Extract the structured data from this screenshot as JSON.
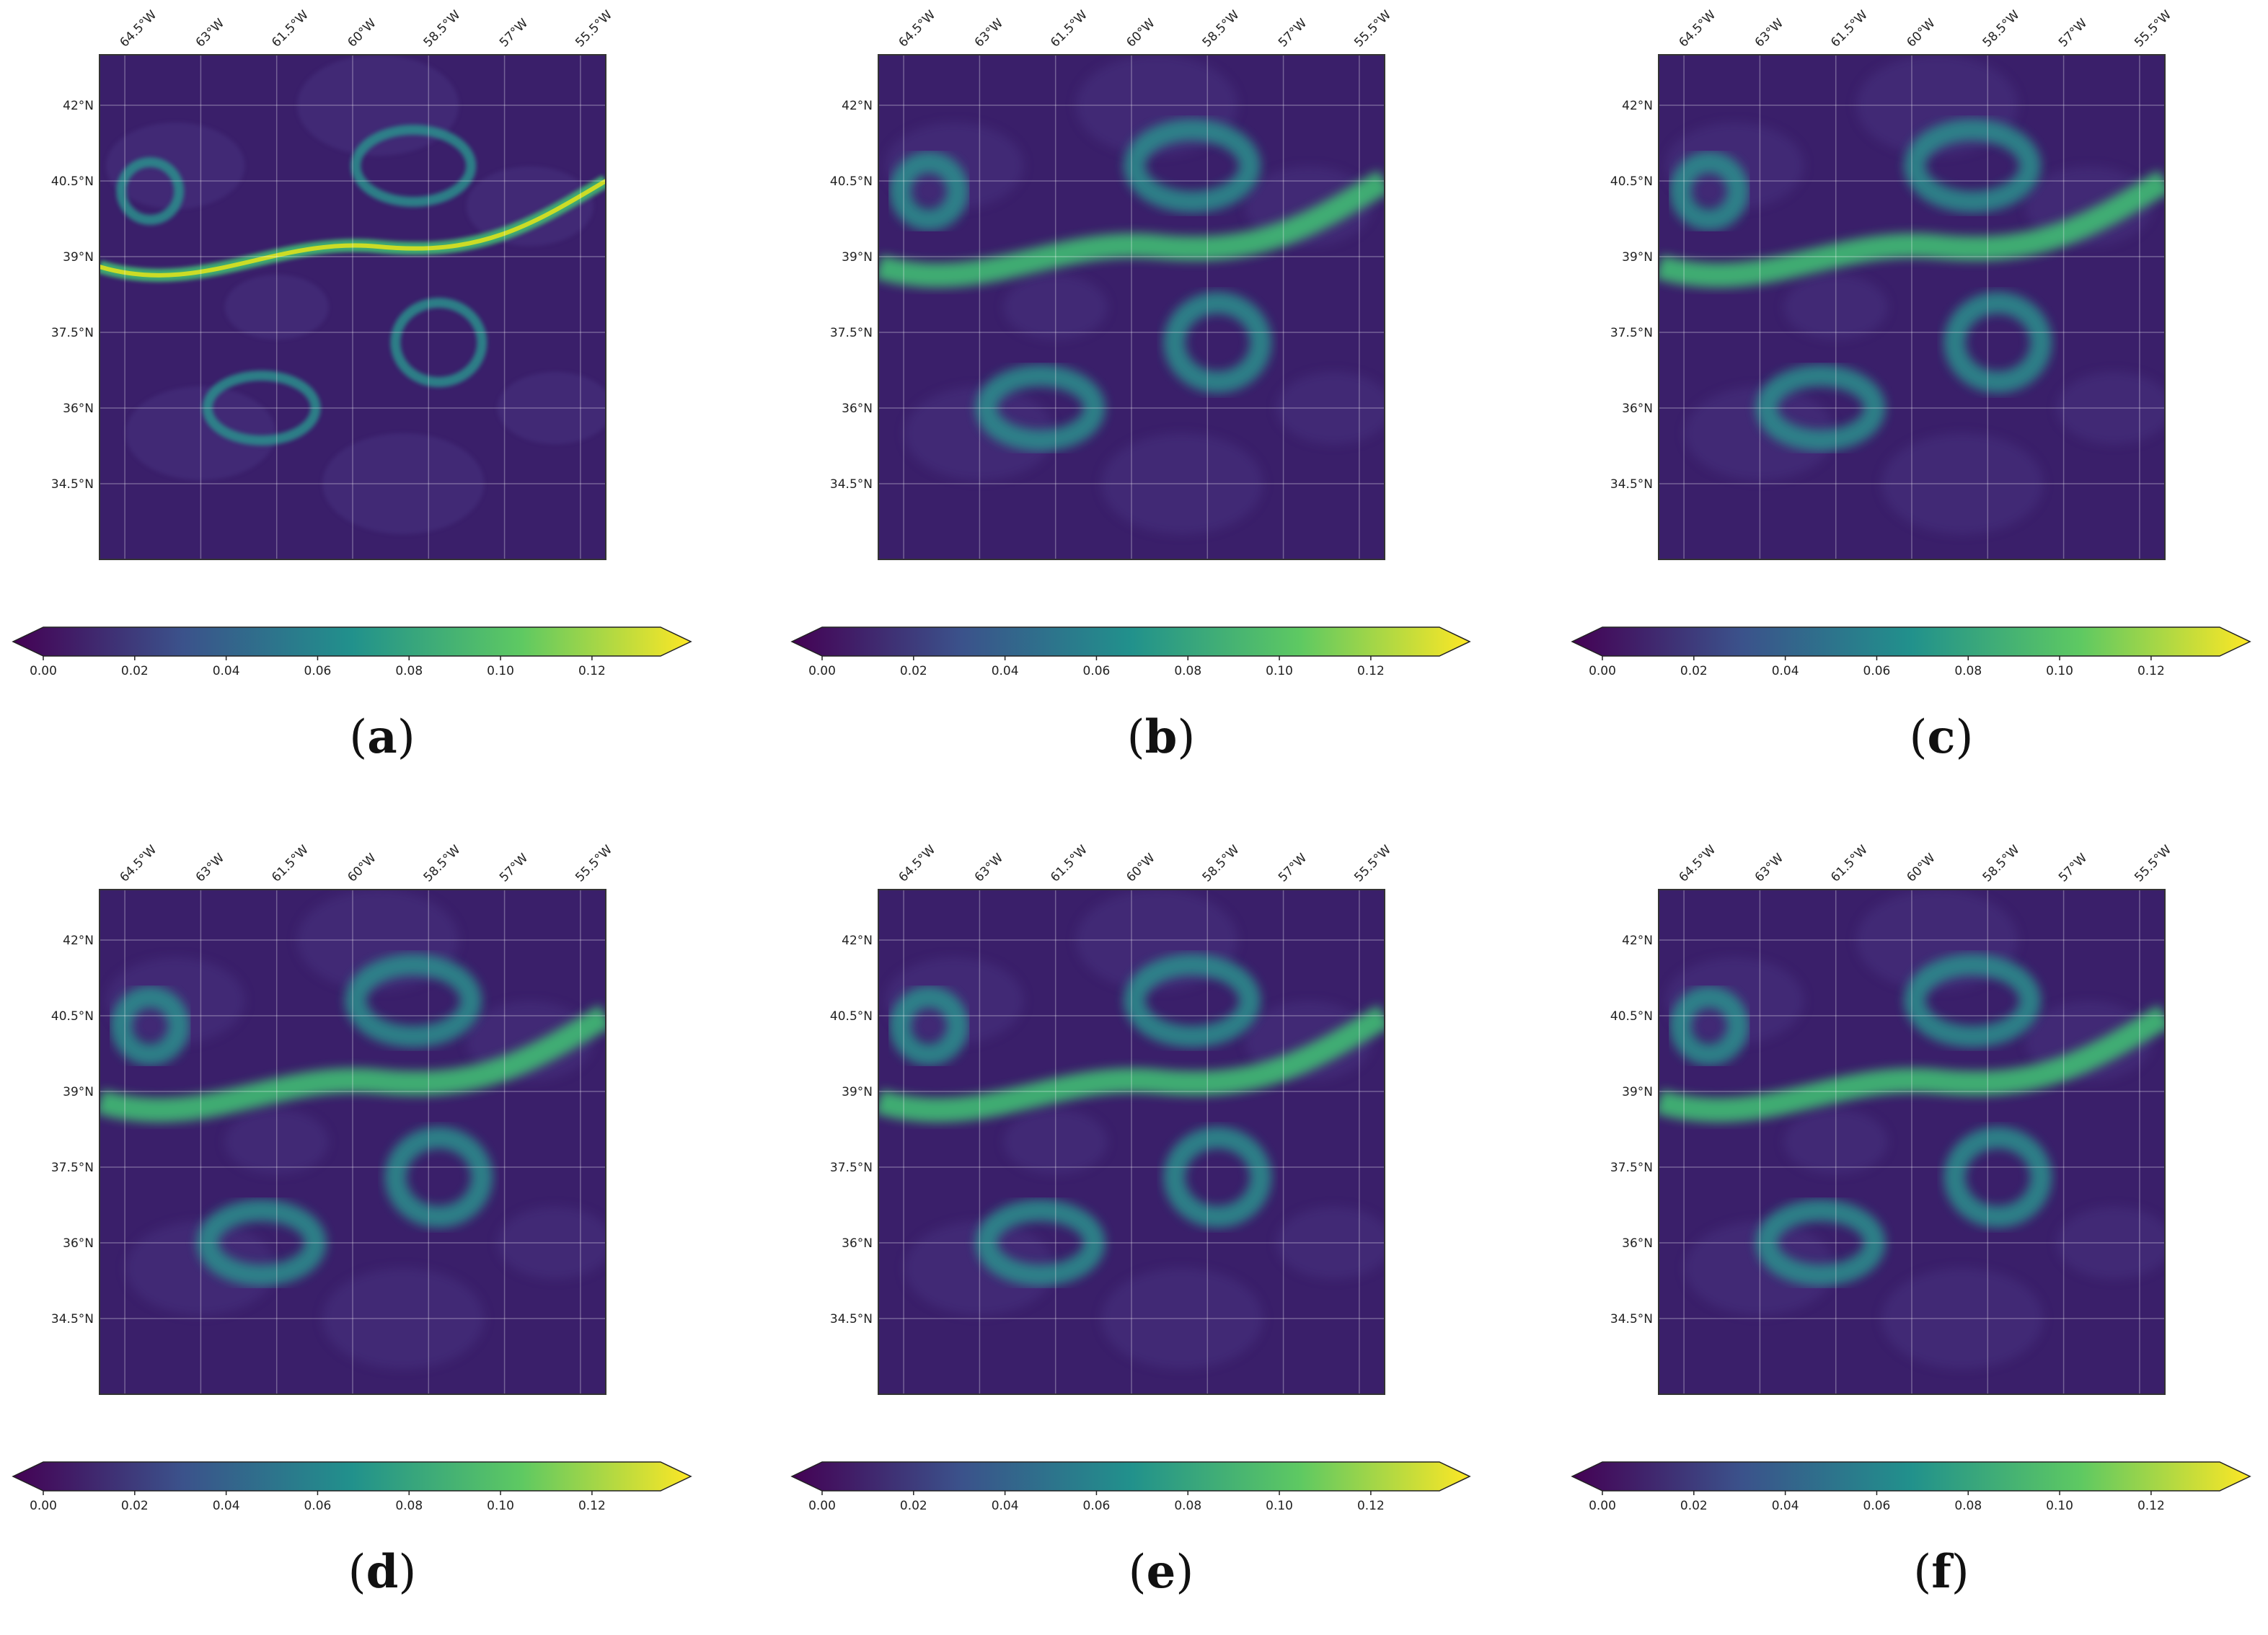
{
  "panels": [
    {
      "label": "(a)",
      "letter": "a"
    },
    {
      "label": "(b)",
      "letter": "b"
    },
    {
      "label": "(c)",
      "letter": "c"
    },
    {
      "label": "(d)",
      "letter": "d"
    },
    {
      "label": "(e)",
      "letter": "e"
    },
    {
      "label": "(f)",
      "letter": "f"
    }
  ],
  "chart_data": {
    "type": "heatmap",
    "x_ticks": [
      "64.5°W",
      "63°W",
      "61.5°W",
      "60°W",
      "58.5°W",
      "57°W",
      "55.5°W"
    ],
    "x_tick_values": [
      -64.5,
      -63,
      -61.5,
      -60,
      -58.5,
      -57,
      -55.5
    ],
    "y_ticks": [
      "42°N",
      "40.5°N",
      "39°N",
      "37.5°N",
      "36°N",
      "34.5°N"
    ],
    "y_tick_values": [
      42,
      40.5,
      39,
      37.5,
      36,
      34.5
    ],
    "xlim": [
      -65,
      -55
    ],
    "ylim": [
      33,
      43
    ],
    "grid": true,
    "colormap": "viridis",
    "colormap_colors": [
      "#440154",
      "#3b528b",
      "#21918c",
      "#5ec962",
      "#fde725"
    ],
    "colorbar": {
      "ticks": [
        "0.00",
        "0.02",
        "0.04",
        "0.06",
        "0.08",
        "0.10",
        "0.12"
      ],
      "tick_values": [
        0.0,
        0.02,
        0.04,
        0.06,
        0.08,
        0.1,
        0.12
      ],
      "range": [
        0.0,
        0.135
      ],
      "extend": "both"
    }
  }
}
